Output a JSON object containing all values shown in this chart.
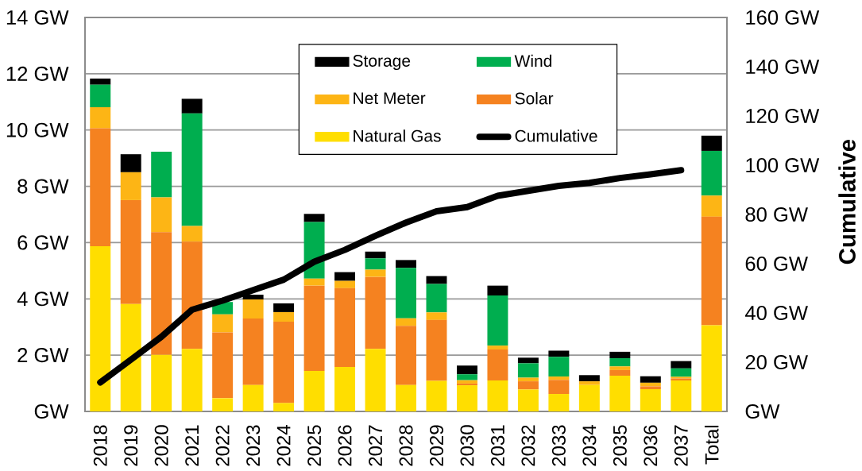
{
  "chart_data": {
    "type": "bar",
    "stacked": true,
    "categories": [
      "2018",
      "2019",
      "2020",
      "2021",
      "2022",
      "2023",
      "2024",
      "2025",
      "2026",
      "2027",
      "2028",
      "2029",
      "2030",
      "2031",
      "2032",
      "2033",
      "2034",
      "2035",
      "2036",
      "2037",
      "Total"
    ],
    "series": [
      {
        "name": "Natural Gas",
        "color": "#ffde00",
        "values": [
          5.87,
          3.82,
          2.01,
          2.22,
          0.47,
          0.94,
          0.3,
          1.44,
          1.58,
          2.22,
          0.94,
          1.09,
          0.93,
          1.1,
          0.78,
          0.62,
          0.94,
          1.27,
          0.79,
          1.1,
          3.06
        ]
      },
      {
        "name": "Solar",
        "color": "#f58220",
        "values": [
          4.19,
          3.69,
          4.36,
          3.81,
          2.34,
          2.36,
          2.89,
          3.03,
          2.8,
          2.56,
          2.1,
          2.16,
          0.06,
          1.1,
          0.29,
          0.5,
          0,
          0.2,
          0.1,
          0.07,
          3.86
        ]
      },
      {
        "name": "Net Meter",
        "color": "#fdb515",
        "values": [
          0.75,
          0.99,
          1.24,
          0.56,
          0.64,
          0.68,
          0.34,
          0.25,
          0.26,
          0.26,
          0.27,
          0.27,
          0.12,
          0.14,
          0.13,
          0.12,
          0.13,
          0.13,
          0.13,
          0.06,
          0.75
        ]
      },
      {
        "name": "Wind",
        "color": "#00ae4f",
        "values": [
          0.8,
          0,
          1.62,
          4.0,
          0.44,
          0,
          0,
          2.01,
          0,
          0.4,
          1.79,
          1.01,
          0.21,
          1.78,
          0.51,
          0.7,
          0,
          0.29,
          0,
          0.3,
          1.59
        ]
      },
      {
        "name": "Storage",
        "color": "#000000",
        "values": [
          0.22,
          0.64,
          0,
          0.52,
          0,
          0.17,
          0.31,
          0.29,
          0.31,
          0.24,
          0.28,
          0.28,
          0.31,
          0.35,
          0.2,
          0.22,
          0.22,
          0.23,
          0.23,
          0.26,
          0.54
        ]
      },
      {
        "name": "Cumulative",
        "type": "line",
        "axis": "y2",
        "color": "#000000",
        "line_style": "solid",
        "values": [
          11.8,
          21.0,
          30.3,
          41.3,
          45.0,
          49.3,
          53.5,
          60.8,
          65.6,
          71.3,
          76.7,
          81.3,
          83.0,
          87.6,
          89.6,
          91.6,
          92.8,
          94.8,
          96.3,
          98.0,
          null
        ]
      }
    ],
    "y2label": "Cumulative",
    "ylim": [
      0,
      14
    ],
    "yticks": [
      {
        "value": 0,
        "label": "GW"
      },
      {
        "value": 2,
        "label": "2 GW"
      },
      {
        "value": 4,
        "label": "4 GW"
      },
      {
        "value": 6,
        "label": "6 GW"
      },
      {
        "value": 8,
        "label": "8 GW"
      },
      {
        "value": 10,
        "label": "10 GW"
      },
      {
        "value": 12,
        "label": "12 GW"
      },
      {
        "value": 14,
        "label": "14 GW"
      }
    ],
    "y2lim": [
      0,
      160
    ],
    "y2ticks": [
      {
        "value": 0,
        "label": "GW"
      },
      {
        "value": 20,
        "label": "20 GW"
      },
      {
        "value": 40,
        "label": "40 GW"
      },
      {
        "value": 60,
        "label": "60 GW"
      },
      {
        "value": 80,
        "label": "80 GW"
      },
      {
        "value": 100,
        "label": "100 GW"
      },
      {
        "value": 120,
        "label": "120 GW"
      },
      {
        "value": 140,
        "label": "140 GW"
      },
      {
        "value": 160,
        "label": "160 GW"
      }
    ],
    "grid": "y",
    "legend": "top"
  }
}
